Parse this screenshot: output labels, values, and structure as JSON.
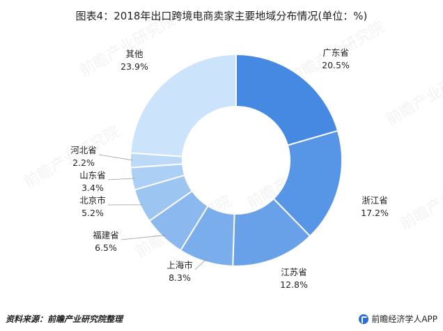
{
  "title": "图表4：2018年出口跨境电商卖家主要地域分布情况(单位：%)",
  "footer": {
    "source": "资料来源：前瞻产业研究院整理",
    "brand": "前瞻经济学人APP"
  },
  "watermark": "前瞻产业研究院",
  "chart_data": {
    "type": "pie",
    "subtype": "donut",
    "unit": "%",
    "slices": [
      {
        "label": "广东省",
        "value": 20.5,
        "value_label": "20.5%",
        "color": "#4589e2"
      },
      {
        "label": "浙江省",
        "value": 17.2,
        "value_label": "17.2%",
        "color": "#5795e6"
      },
      {
        "label": "江苏省",
        "value": 12.8,
        "value_label": "12.8%",
        "color": "#68a1e8"
      },
      {
        "label": "上海市",
        "value": 8.3,
        "value_label": "8.3%",
        "color": "#79adeb"
      },
      {
        "label": "福建省",
        "value": 6.5,
        "value_label": "6.5%",
        "color": "#8bb9ef"
      },
      {
        "label": "北京市",
        "value": 5.2,
        "value_label": "5.2%",
        "color": "#9cc5f2"
      },
      {
        "label": "山东省",
        "value": 3.4,
        "value_label": "3.4%",
        "color": "#acd0f5"
      },
      {
        "label": "河北省",
        "value": 2.2,
        "value_label": "2.2%",
        "color": "#bcdaf7"
      },
      {
        "label": "其他",
        "value": 23.9,
        "value_label": "23.9%",
        "color": "#cce4fb"
      }
    ]
  }
}
